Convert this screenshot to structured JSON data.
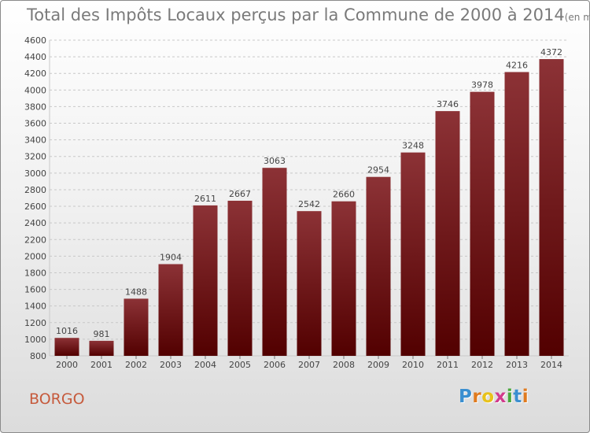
{
  "header": {
    "title": "Total des Impôts Locaux perçus par la Commune de 2000 à 2014",
    "unit": "(en milliers d'€)"
  },
  "footer": {
    "commune": "BORGO",
    "logo_letters": [
      "P",
      "r",
      "o",
      "x",
      "i",
      "t",
      "i"
    ],
    "logo_colors": [
      "#3a8fd0",
      "#e07b1f",
      "#e8c21a",
      "#d23a8c",
      "#4aa83c",
      "#3a8fd0",
      "#e07b1f"
    ]
  },
  "colors": {
    "bar_top": "#8c3236",
    "bar_bottom": "#520000",
    "grid": "#c8c8c8",
    "axis_text": "#444444",
    "commune_text": "#c65a3c"
  },
  "chart_data": {
    "type": "bar",
    "title": "Total des Impôts Locaux perçus par la Commune de 2000 à 2014",
    "unit": "(en milliers d'€)",
    "xlabel": "",
    "ylabel": "",
    "categories": [
      "2000",
      "2001",
      "2002",
      "2003",
      "2004",
      "2005",
      "2006",
      "2007",
      "2008",
      "2009",
      "2010",
      "2011",
      "2012",
      "2013",
      "2014"
    ],
    "values": [
      1016,
      981,
      1488,
      1904,
      2611,
      2667,
      3063,
      2542,
      2660,
      2954,
      3248,
      3746,
      3978,
      4216,
      4372
    ],
    "ylim": [
      800,
      4600
    ],
    "yticks": [
      800,
      1000,
      1200,
      1400,
      1600,
      1800,
      2000,
      2200,
      2400,
      2600,
      2800,
      3000,
      3200,
      3400,
      3600,
      3800,
      4000,
      4200,
      4400,
      4600
    ],
    "grid": true,
    "data_labels": true
  }
}
